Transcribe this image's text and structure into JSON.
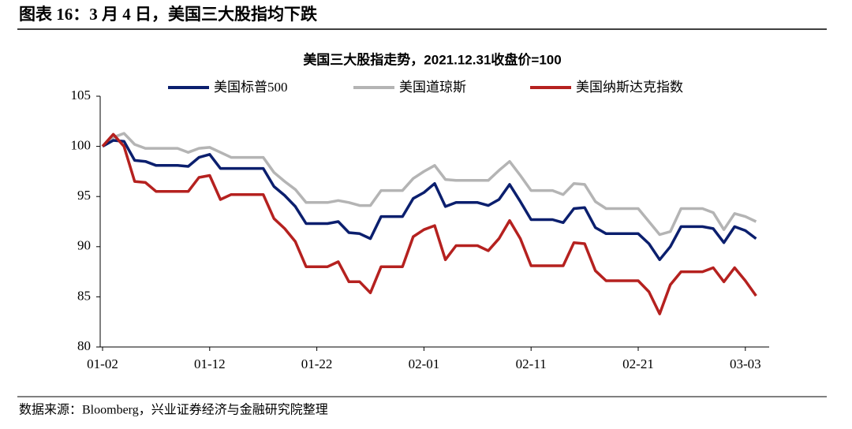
{
  "header": {
    "title": "图表 16：3 月 4 日，美国三大股指均下跌"
  },
  "chart_data": {
    "type": "line",
    "title": "美国三大股指走势，2021.12.31收盘价=100",
    "categories": [
      "01-02",
      null,
      null,
      null,
      null,
      null,
      null,
      null,
      null,
      null,
      "01-12",
      null,
      null,
      null,
      null,
      null,
      null,
      null,
      null,
      null,
      "01-22",
      null,
      null,
      null,
      null,
      null,
      null,
      null,
      null,
      null,
      "02-01",
      null,
      null,
      null,
      null,
      null,
      null,
      null,
      null,
      null,
      "02-11",
      null,
      null,
      null,
      null,
      null,
      null,
      null,
      null,
      null,
      "02-21",
      null,
      null,
      null,
      null,
      null,
      null,
      null,
      null,
      null,
      "03-03",
      null
    ],
    "series": [
      {
        "name": "美国标普500",
        "color": "#0b1f6e",
        "values": [
          100,
          100.6,
          100.5,
          98.6,
          98.5,
          98.1,
          98.1,
          98.1,
          98.0,
          98.9,
          99.2,
          97.8,
          97.8,
          97.8,
          97.8,
          97.8,
          96.0,
          95.1,
          94.0,
          92.3,
          92.3,
          92.3,
          92.5,
          91.4,
          91.3,
          90.8,
          93.0,
          93.0,
          93.0,
          94.8,
          95.4,
          96.3,
          94.0,
          94.4,
          94.4,
          94.4,
          94.1,
          94.7,
          96.2,
          94.5,
          92.7,
          92.7,
          92.7,
          92.4,
          93.8,
          93.9,
          91.9,
          91.3,
          91.3,
          91.3,
          91.3,
          90.3,
          88.7,
          90.0,
          92.0,
          92.0,
          92.0,
          91.8,
          90.4,
          92.0,
          91.6,
          90.8
        ]
      },
      {
        "name": "美国道琼斯",
        "color": "#b4b4b4",
        "values": [
          100,
          100.9,
          101.3,
          100.2,
          99.8,
          99.8,
          99.8,
          99.8,
          99.4,
          99.8,
          99.9,
          99.4,
          98.9,
          98.9,
          98.9,
          98.9,
          97.4,
          96.5,
          95.7,
          94.4,
          94.4,
          94.4,
          94.6,
          94.4,
          94.1,
          94.1,
          95.6,
          95.6,
          95.6,
          96.8,
          97.5,
          98.1,
          96.7,
          96.6,
          96.6,
          96.6,
          96.6,
          97.6,
          98.5,
          97.1,
          95.6,
          95.6,
          95.6,
          95.2,
          96.3,
          96.2,
          94.5,
          93.8,
          93.8,
          93.8,
          93.8,
          92.5,
          91.2,
          91.5,
          93.8,
          93.8,
          93.8,
          93.4,
          91.7,
          93.3,
          93.0,
          92.5
        ]
      },
      {
        "name": "美国纳斯达克指数",
        "color": "#b5211f",
        "values": [
          100,
          101.2,
          100.0,
          96.5,
          96.4,
          95.5,
          95.5,
          95.5,
          95.5,
          96.9,
          97.1,
          94.7,
          95.2,
          95.2,
          95.2,
          95.2,
          92.8,
          91.8,
          90.5,
          88.0,
          88.0,
          88.0,
          88.5,
          86.5,
          86.5,
          85.4,
          88.0,
          88.0,
          88.0,
          91.0,
          91.7,
          92.1,
          88.7,
          90.1,
          90.1,
          90.1,
          89.6,
          90.8,
          92.6,
          90.8,
          88.1,
          88.1,
          88.1,
          88.1,
          90.4,
          90.3,
          87.6,
          86.6,
          86.6,
          86.6,
          86.6,
          85.5,
          83.3,
          86.2,
          87.5,
          87.5,
          87.5,
          87.9,
          86.5,
          87.9,
          86.6,
          85.1
        ]
      }
    ],
    "ylim": [
      80,
      105
    ],
    "yticks": [
      80,
      85,
      90,
      95,
      100,
      105
    ],
    "legend": "top"
  },
  "source": "数据来源：Bloomberg，兴业证券经济与金融研究院整理"
}
